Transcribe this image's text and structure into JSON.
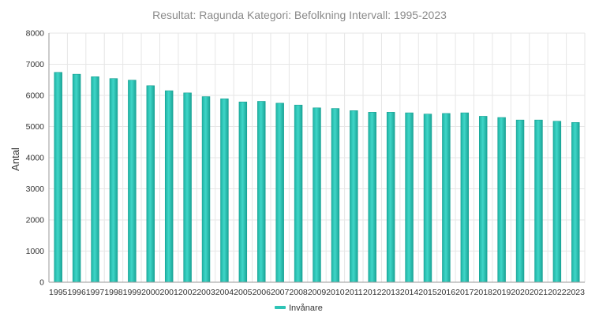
{
  "chart_data": {
    "type": "bar",
    "title": "Resultat: Ragunda Kategori: Befolkning Intervall: 1995-2023",
    "ylabel": "Antal",
    "xlabel": "",
    "ylim": [
      0,
      8000
    ],
    "yticks": [
      0,
      1000,
      2000,
      3000,
      4000,
      5000,
      6000,
      7000,
      8000
    ],
    "grid": true,
    "legend_position": "bottom",
    "categories": [
      "1995",
      "1996",
      "1997",
      "1998",
      "1999",
      "2000",
      "2001",
      "2002",
      "2003",
      "2004",
      "2005",
      "2006",
      "2007",
      "2008",
      "2009",
      "2010",
      "2011",
      "2012",
      "2013",
      "2014",
      "2015",
      "2016",
      "2017",
      "2018",
      "2019",
      "2020",
      "2021",
      "2022",
      "2023"
    ],
    "series": [
      {
        "name": "Invånare",
        "color": "#2ec4b6",
        "values": [
          6740,
          6680,
          6600,
          6540,
          6490,
          6310,
          6150,
          6080,
          5960,
          5890,
          5790,
          5810,
          5750,
          5690,
          5600,
          5580,
          5510,
          5460,
          5460,
          5440,
          5400,
          5420,
          5440,
          5330,
          5290,
          5210,
          5210,
          5170,
          5130
        ]
      }
    ]
  }
}
